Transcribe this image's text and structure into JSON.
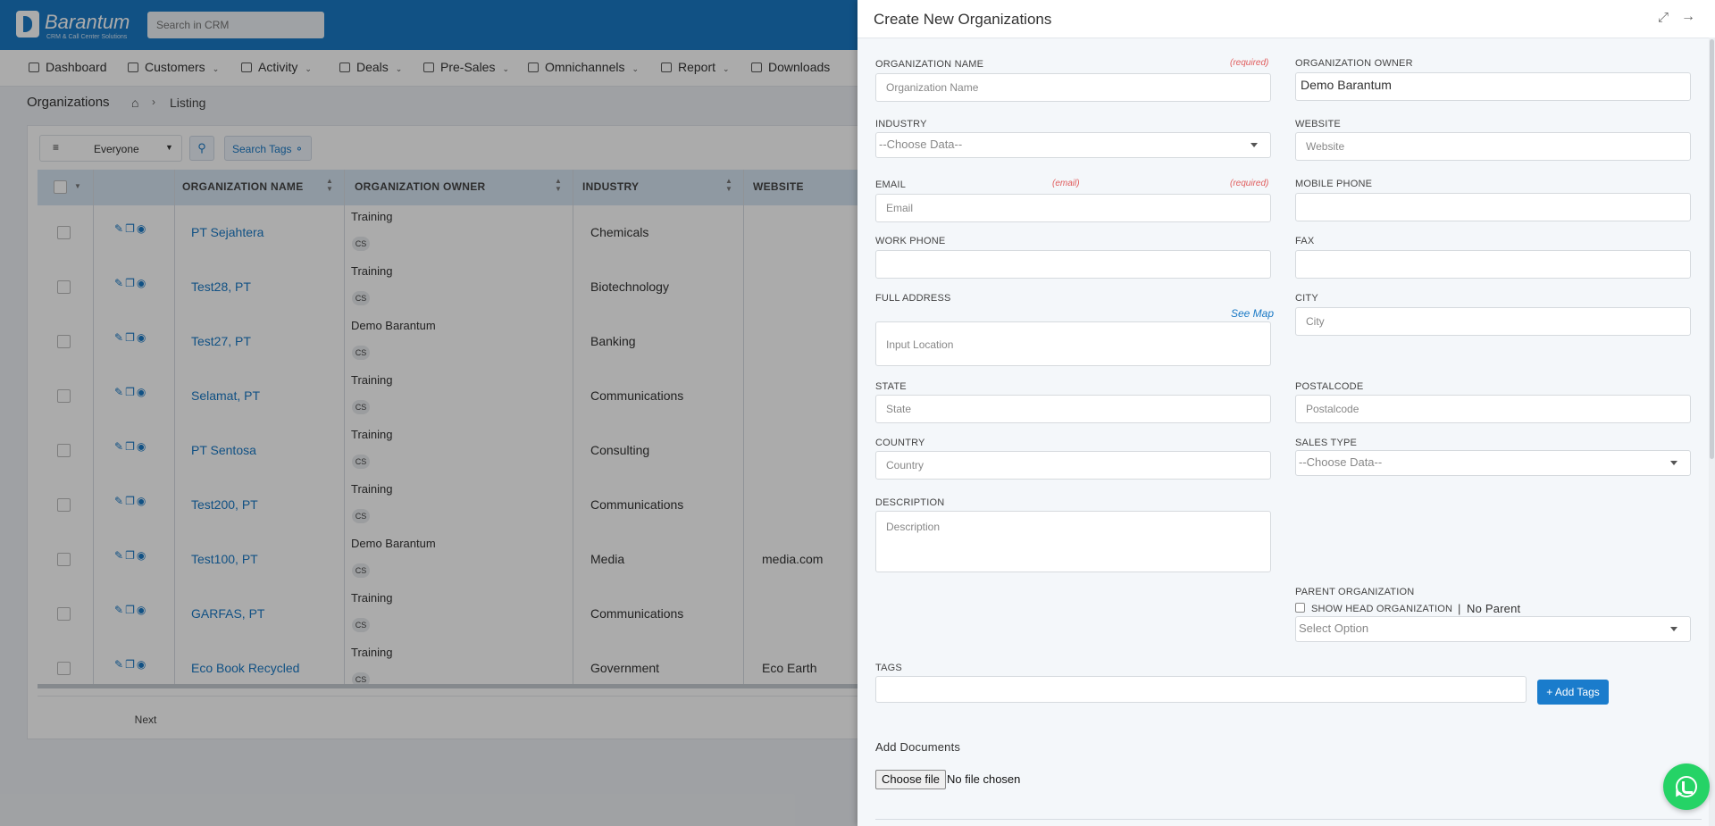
{
  "app": {
    "logo_name": "Barantum",
    "logo_tagline": "CRM & Call Center Solutions",
    "search_placeholder": "Search in CRM"
  },
  "nav": {
    "items": [
      {
        "label": "Dashboard",
        "icon": "home-icon"
      },
      {
        "label": "Customers",
        "icon": "folder-icon"
      },
      {
        "label": "Activity",
        "icon": "users-icon"
      },
      {
        "label": "Deals",
        "icon": "pulse-icon"
      },
      {
        "label": "Pre-Sales",
        "icon": "folder-icon"
      },
      {
        "label": "Omnichannels",
        "icon": "folder-icon"
      },
      {
        "label": "Report",
        "icon": "bar-chart-icon"
      },
      {
        "label": "Downloads",
        "icon": "download-icon"
      }
    ]
  },
  "breadcrumb": {
    "title": "Organizations",
    "current": "Listing"
  },
  "list": {
    "filter_value": "Everyone",
    "search_tags_label": "Search Tags",
    "columns": [
      "ORGANIZATION NAME",
      "ORGANIZATION OWNER",
      "INDUSTRY",
      "WEBSITE"
    ],
    "rows": [
      {
        "name": "PT Sejahtera",
        "owner": "Training",
        "owner_badge": "CS",
        "industry": "Chemicals",
        "website": ""
      },
      {
        "name": "Test28, PT",
        "owner": "Training",
        "owner_badge": "CS",
        "industry": "Biotechnology",
        "website": ""
      },
      {
        "name": "Test27, PT",
        "owner": "Demo Barantum",
        "owner_badge": "CS",
        "industry": "Banking",
        "website": ""
      },
      {
        "name": "Selamat, PT",
        "owner": "Training",
        "owner_badge": "CS",
        "industry": "Communications",
        "website": ""
      },
      {
        "name": "PT Sentosa",
        "owner": "Training",
        "owner_badge": "CS",
        "industry": "Consulting",
        "website": ""
      },
      {
        "name": "Test200, PT",
        "owner": "Training",
        "owner_badge": "CS",
        "industry": "Communications",
        "website": ""
      },
      {
        "name": "Test100, PT",
        "owner": "Demo Barantum",
        "owner_badge": "CS",
        "industry": "Media",
        "website": "media.com"
      },
      {
        "name": "GARFAS, PT",
        "owner": "Training",
        "owner_badge": "CS",
        "industry": "Communications",
        "website": ""
      },
      {
        "name": "Eco Book Recycled",
        "owner": "Training",
        "owner_badge": "CS",
        "industry": "Government",
        "website": "Eco Earth"
      }
    ],
    "next_label": "Next"
  },
  "form": {
    "title": "Create New Organizations",
    "org_name": {
      "label": "ORGANIZATION NAME",
      "required": "(required)",
      "placeholder": "Organization Name"
    },
    "org_owner": {
      "label": "ORGANIZATION OWNER",
      "value": "Demo Barantum"
    },
    "industry": {
      "label": "INDUSTRY",
      "value": "--Choose Data--"
    },
    "website": {
      "label": "WEBSITE",
      "placeholder": "Website"
    },
    "email": {
      "label": "EMAIL",
      "note": "(email)",
      "required": "(required)",
      "placeholder": "Email"
    },
    "mobile": {
      "label": "MOBILE PHONE"
    },
    "work_phone": {
      "label": "WORK PHONE"
    },
    "fax": {
      "label": "FAX"
    },
    "address": {
      "label": "FULL ADDRESS",
      "see_map": "See Map",
      "placeholder": "Input Location"
    },
    "city": {
      "label": "CITY",
      "placeholder": "City"
    },
    "state": {
      "label": "STATE",
      "placeholder": "State"
    },
    "postalcode": {
      "label": "POSTALCODE",
      "placeholder": "Postalcode"
    },
    "country": {
      "label": "COUNTRY",
      "placeholder": "Country"
    },
    "sales_type": {
      "label": "SALES TYPE",
      "value": "--Choose Data--"
    },
    "description": {
      "label": "DESCRIPTION",
      "placeholder": "Description"
    },
    "parent": {
      "label": "PARENT ORGANIZATION",
      "show_head": "SHOW HEAD ORGANIZATION",
      "separator": "|",
      "no_parent": "No Parent",
      "select": "Select Option"
    },
    "tags": {
      "label": "TAGS",
      "add_button": "+ Add Tags"
    },
    "documents": {
      "label": "Add Documents",
      "choose": "Choose file",
      "no_file": "No file chosen"
    }
  }
}
